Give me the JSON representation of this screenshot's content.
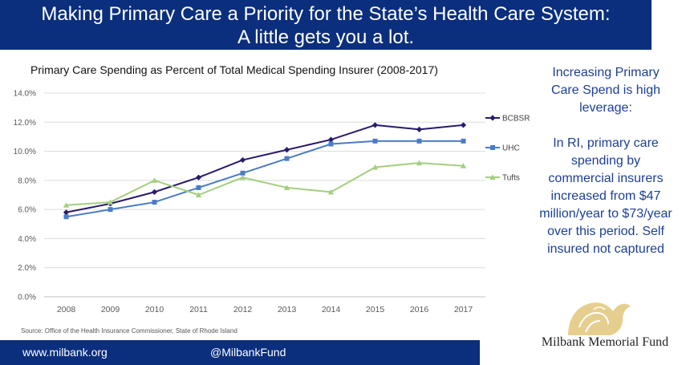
{
  "header": {
    "title_line1": "Making Primary Care a Priority for the State’s Health Care System:",
    "title_line2": "A little gets you a lot."
  },
  "chart_data": {
    "type": "line",
    "title": "Primary Care Spending as Percent of Total Medical Spending Insurer (2008-2017)",
    "xlabel": "",
    "ylabel": "",
    "categories": [
      "2008",
      "2009",
      "2010",
      "2011",
      "2012",
      "2013",
      "2014",
      "2015",
      "2016",
      "2017"
    ],
    "ylim": [
      0,
      14
    ],
    "yticks": [
      0,
      2,
      4,
      6,
      8,
      10,
      12,
      14
    ],
    "ytick_labels": [
      "0.0%",
      "2.0%",
      "4.0%",
      "6.0%",
      "8.0%",
      "10.0%",
      "12.0%",
      "14.0%"
    ],
    "grid": true,
    "legend": "right",
    "series": [
      {
        "name": "BCBSRI",
        "color": "#2a1a6e",
        "marker": "diamond",
        "values": [
          5.8,
          6.4,
          7.2,
          8.2,
          9.4,
          10.1,
          10.8,
          11.8,
          11.5,
          11.8
        ]
      },
      {
        "name": "UHC",
        "color": "#4a7cc7",
        "marker": "square",
        "values": [
          5.5,
          6.0,
          6.5,
          7.5,
          8.5,
          9.5,
          10.5,
          10.7,
          10.7,
          10.7
        ]
      },
      {
        "name": "Tufts",
        "color": "#a3cf7d",
        "marker": "triangle",
        "values": [
          6.3,
          6.5,
          8.0,
          7.0,
          8.2,
          7.5,
          7.2,
          8.9,
          9.2,
          9.0
        ]
      }
    ],
    "source": "Source: Office of the Health Insurance Commissioner, State of Rhode Island"
  },
  "sidebar": {
    "para1": "Increasing Primary Care Spend is high leverage:",
    "para2": "In RI, primary care spending by commercial insurers increased from $47 million/year to $73/year over this period. Self insured not captured"
  },
  "footer": {
    "url": "www.milbank.org",
    "handle": "@MilbankFund"
  },
  "logo": {
    "text": "Milbank Memorial Fund",
    "color": "#e6cf8e"
  }
}
